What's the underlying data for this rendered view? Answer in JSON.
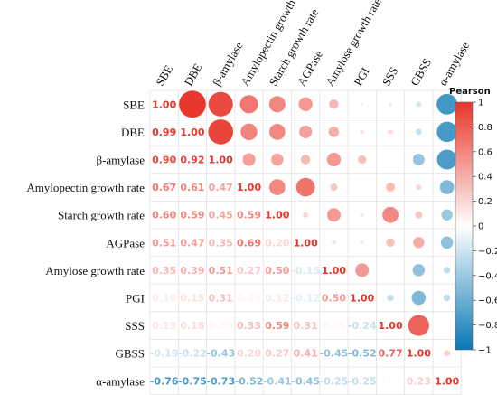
{
  "chart_data": {
    "type": "heatmap",
    "variables": [
      "SBE",
      "DBE",
      "β-amylase",
      "Amylopectin growth rate",
      "Starch growth rate",
      "AGPase",
      "Amylose growth rate",
      "PGI",
      "SSS",
      "GBSS",
      "α-amylase"
    ],
    "matrix": [
      [
        1.0,
        0.99,
        0.9,
        0.67,
        0.6,
        0.51,
        0.35,
        0.1,
        0.13,
        -0.19,
        -0.76
      ],
      [
        0.99,
        1.0,
        0.92,
        0.61,
        0.59,
        0.47,
        0.39,
        0.15,
        0.18,
        -0.22,
        -0.75
      ],
      [
        0.9,
        0.92,
        1.0,
        0.47,
        0.45,
        0.35,
        0.51,
        0.31,
        0.05,
        -0.43,
        -0.73
      ],
      [
        0.67,
        0.61,
        0.47,
        1.0,
        0.59,
        0.69,
        0.27,
        0.05,
        0.33,
        0.2,
        -0.52
      ],
      [
        0.6,
        0.59,
        0.45,
        0.59,
        1.0,
        0.2,
        0.5,
        0.12,
        0.59,
        0.27,
        -0.41
      ],
      [
        0.51,
        0.47,
        0.35,
        0.69,
        0.2,
        1.0,
        -0.15,
        -0.12,
        0.31,
        0.41,
        -0.45
      ],
      [
        0.35,
        0.39,
        0.51,
        0.27,
        0.5,
        -0.15,
        1.0,
        0.5,
        0.05,
        -0.45,
        -0.25
      ],
      [
        0.1,
        0.15,
        0.31,
        0.05,
        0.12,
        -0.12,
        0.5,
        1.0,
        -0.24,
        -0.52,
        -0.25
      ],
      [
        0.13,
        0.18,
        0.05,
        0.33,
        0.59,
        0.31,
        0.05,
        -0.24,
        1.0,
        0.77,
        0.02
      ],
      [
        -0.19,
        -0.22,
        -0.43,
        0.2,
        0.27,
        0.41,
        -0.45,
        -0.52,
        0.77,
        1.0,
        0.23
      ],
      [
        -0.76,
        -0.75,
        -0.73,
        -0.52,
        -0.41,
        -0.45,
        -0.25,
        -0.25,
        0.02,
        0.23,
        1.0
      ]
    ],
    "lower_triangle": "numbers",
    "upper_triangle": "circles",
    "legend": {
      "title": "Pearson",
      "placement": "right",
      "ticks": [
        "1",
        "0.8",
        "0.6",
        "0.4",
        "0.2",
        "0",
        "−0.2",
        "−0.4",
        "−0.6",
        "−0.8",
        "−1"
      ],
      "range": [
        -1,
        1
      ]
    },
    "colors": {
      "positive": "#e8352a",
      "negative": "#0878b4",
      "neutral": "#ffffff",
      "grid": "#e2e2e2"
    }
  }
}
